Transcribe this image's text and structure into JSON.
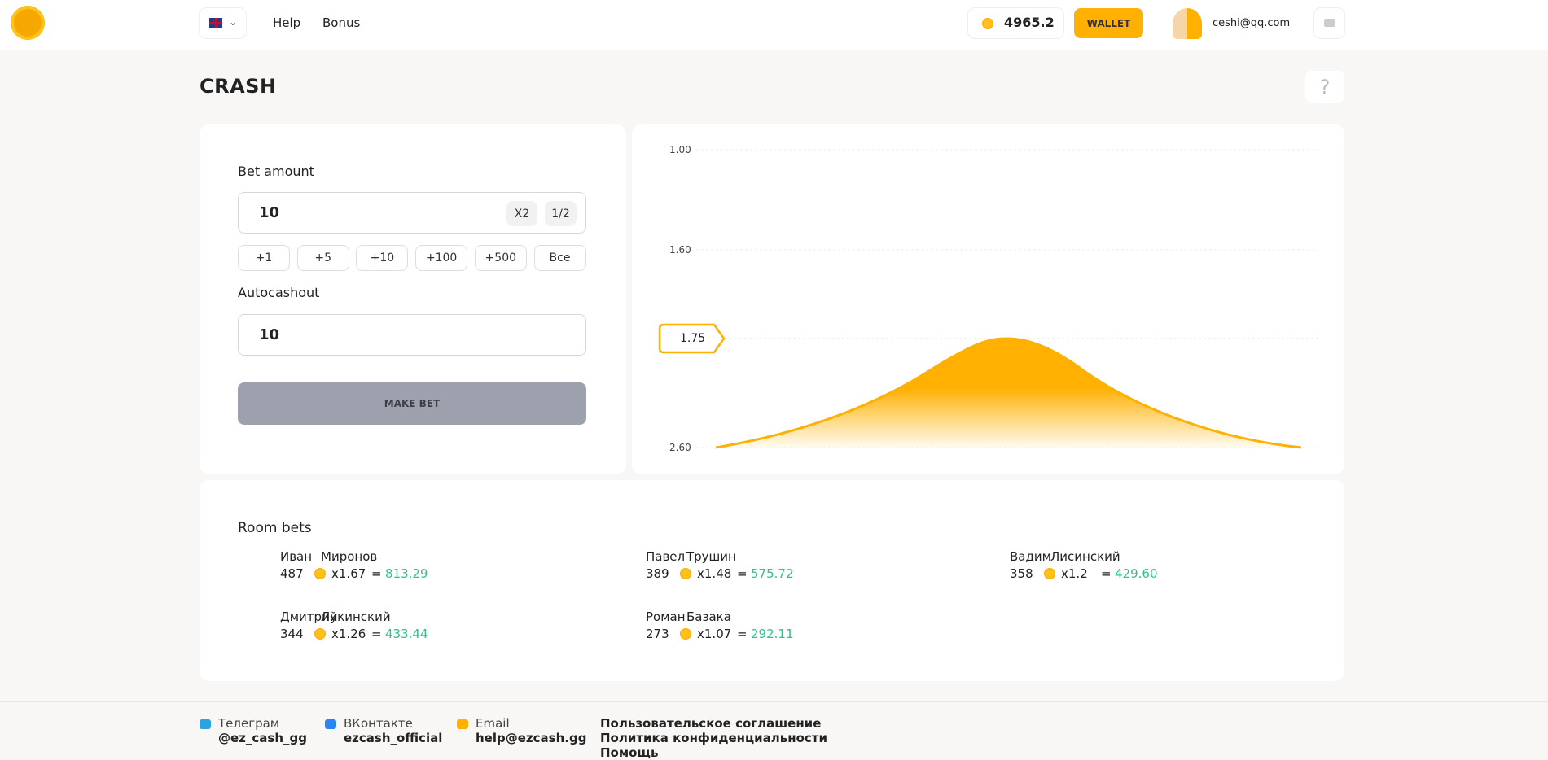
{
  "header": {
    "nav": [
      "Help",
      "Bonus"
    ],
    "balance": "4965.2",
    "wallet_button": "WALLET",
    "email": "ceshi@qq.com"
  },
  "page_title": "CRASH",
  "help_button": "?",
  "bet_panel": {
    "bet_label": "Bet amount",
    "bet_value": "10",
    "multiplier_buttons": [
      "X2",
      "1/2"
    ],
    "quick_buttons": [
      "+1",
      "+5",
      "+10",
      "+100",
      "+500",
      "Все"
    ],
    "autocashout_label": "Autocashout",
    "autocashout_value": "10",
    "make_bet_button": "MAKE BET"
  },
  "chart": {
    "axis_labels": [
      "1.00",
      "1.60",
      "2.60"
    ],
    "current_marker": "1.75"
  },
  "room_bets": {
    "title": "Room bets",
    "bets": [
      {
        "first_name": "Иван",
        "last_name": "Миронов",
        "amount": "487",
        "multiplier": "x1.67",
        "equals": "=",
        "payout": "813.29"
      },
      {
        "first_name": "Павел",
        "last_name": "Трушин",
        "amount": "389",
        "multiplier": "x1.48",
        "equals": "=",
        "payout": "575.72"
      },
      {
        "first_name": "Вадим",
        "last_name": "Лисинский",
        "amount": "358",
        "multiplier": "x1.2",
        "equals": "=",
        "payout": "429.60"
      },
      {
        "first_name": "Дмитрий",
        "last_name": "Лукинский",
        "amount": "344",
        "multiplier": "x1.26",
        "equals": "=",
        "payout": "433.44"
      },
      {
        "first_name": "Роман",
        "last_name": "Базака",
        "amount": "273",
        "multiplier": "x1.07",
        "equals": "=",
        "payout": "292.11"
      }
    ]
  },
  "footer": {
    "contacts": [
      {
        "label": "Телеграм",
        "value": "@ez_cash_gg"
      },
      {
        "label": "ВКонтакте",
        "value": "ezcash_official"
      },
      {
        "label": "Email",
        "value": "help@ezcash.gg"
      }
    ],
    "links": [
      "Пользовательское соглашение",
      "Политика конфиденциальности",
      "Помощь"
    ]
  }
}
